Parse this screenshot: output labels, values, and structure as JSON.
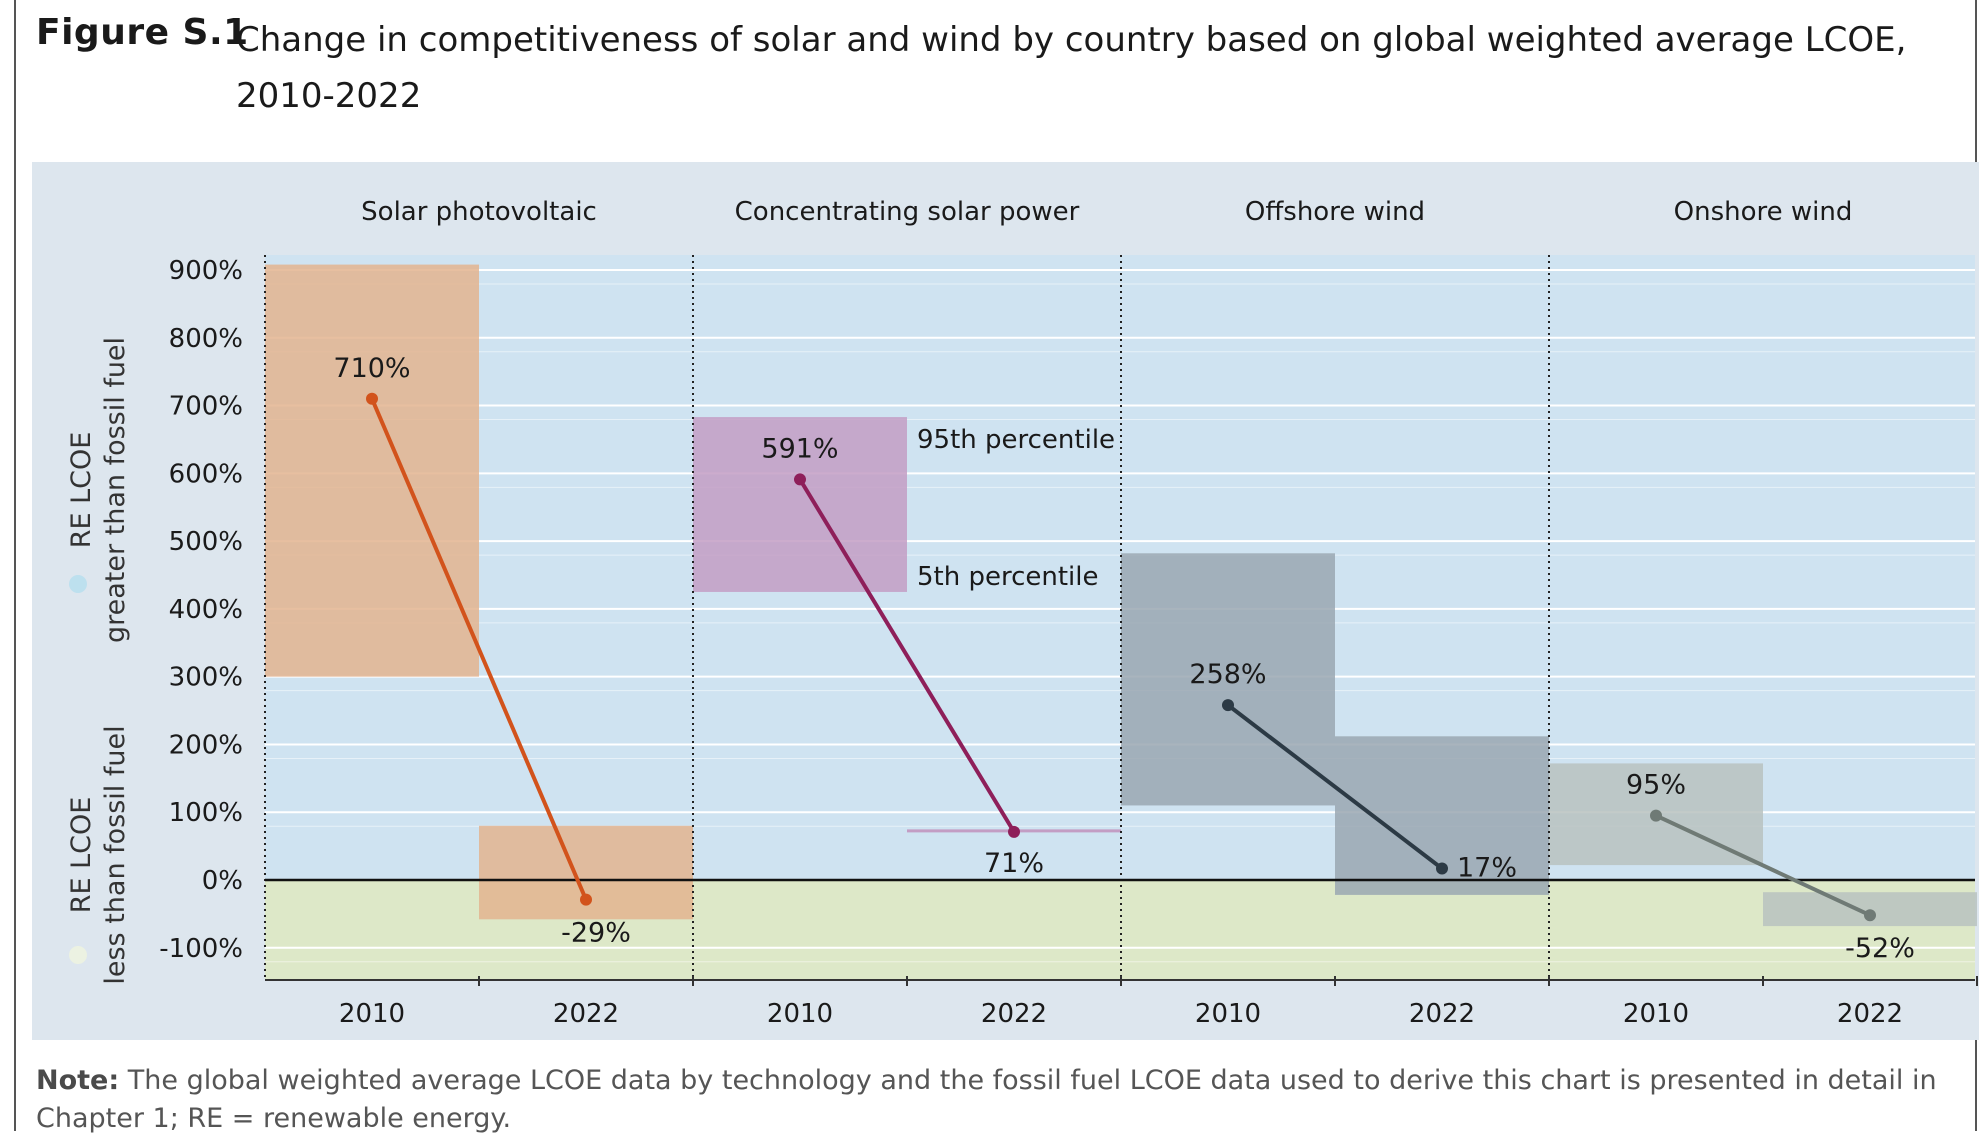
{
  "figure": {
    "label": "Figure S.1",
    "title": "Change in competitiveness of solar and wind by country based on global weighted average LCOE, 2010-2022"
  },
  "note": {
    "label": "Note:",
    "text": "The global weighted average LCOE data by technology and the fossil fuel LCOE data used to derive this chart is presented in detail in Chapter 1; RE = renewable energy."
  },
  "side_labels": {
    "upper_line1": "RE LCOE",
    "upper_line2": "greater than fossil fuel",
    "lower_line1": "RE LCOE",
    "lower_line2": "less than fossil fuel"
  },
  "annotations": {
    "p95": "95th percentile",
    "p5": "5th percentile"
  },
  "colors": {
    "background_upper": "#cfe3f1",
    "background_lower": "#dde8c8",
    "plot_frame": "#dde6ee",
    "solar_pv": "#d2531c",
    "solar_pv_band": "#e3b48f",
    "csp": "#8e1f5a",
    "csp_band": "#c39dc4",
    "offshore": "#2c3a45",
    "offshore_band": "#9aa7b1",
    "onshore": "#6f7a75",
    "onshore_band": "#b8c2c0"
  },
  "chart_data": {
    "type": "line",
    "ylabel": "",
    "xlabel": "",
    "ylim": [
      -150,
      920
    ],
    "yticks": [
      "900%",
      "800%",
      "700%",
      "600%",
      "500%",
      "400%",
      "300%",
      "200%",
      "100%",
      "0%",
      "-100%"
    ],
    "ytick_values": [
      900,
      800,
      700,
      600,
      500,
      400,
      300,
      200,
      100,
      0,
      -100
    ],
    "grid": true,
    "panels": [
      {
        "name": "Solar photovoltaic",
        "categories": [
          "2010",
          "2022"
        ],
        "values": [
          710,
          -29
        ],
        "labels": [
          "710%",
          "-29%"
        ],
        "p5": [
          300,
          -58
        ],
        "p95": [
          908,
          80
        ]
      },
      {
        "name": "Concentrating solar power",
        "categories": [
          "2010",
          "2022"
        ],
        "values": [
          591,
          71
        ],
        "labels": [
          "591%",
          "71%"
        ],
        "p5": [
          425,
          71
        ],
        "p95": [
          683,
          74
        ]
      },
      {
        "name": "Offshore wind",
        "categories": [
          "2010",
          "2022"
        ],
        "values": [
          258,
          17
        ],
        "labels": [
          "258%",
          "17%"
        ],
        "p5": [
          110,
          -22
        ],
        "p95": [
          482,
          212
        ]
      },
      {
        "name": "Onshore wind",
        "categories": [
          "2010",
          "2022"
        ],
        "values": [
          95,
          -52
        ],
        "labels": [
          "95%",
          "-52%"
        ],
        "p5": [
          22,
          -68
        ],
        "p95": [
          172,
          -18
        ]
      }
    ]
  }
}
